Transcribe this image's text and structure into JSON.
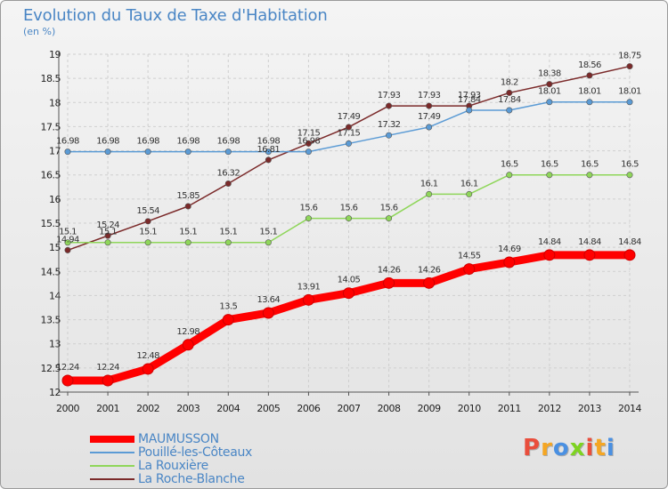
{
  "title": "Evolution du Taux de Taxe d'Habitation",
  "subtitle": "(en %)",
  "logo_text": "Proxiti",
  "chart_data": {
    "type": "line",
    "title": "Evolution du Taux de Taxe d'Habitation",
    "ylabel": "(en %)",
    "xlabel": "",
    "ylim": [
      12,
      19
    ],
    "yticks": [
      "12",
      "12.5",
      "13",
      "13.5",
      "14",
      "14.5",
      "15",
      "15.5",
      "16",
      "16.5",
      "17",
      "17.5",
      "18",
      "18.5",
      "19"
    ],
    "x": [
      "2000",
      "2001",
      "2002",
      "2003",
      "2004",
      "2005",
      "2006",
      "2007",
      "2008",
      "2009",
      "2010",
      "2011",
      "2012",
      "2013",
      "2014"
    ],
    "grid": true,
    "series": [
      {
        "name": "MAUMUSSON",
        "color": "#ff0000",
        "values": [
          12.24,
          12.24,
          12.48,
          12.98,
          13.5,
          13.64,
          13.91,
          14.05,
          14.26,
          14.26,
          14.55,
          14.69,
          14.84,
          14.84,
          14.84
        ],
        "labels": [
          "12.24",
          "12.24",
          "12.48",
          "12.98",
          "13.5",
          "13.64",
          "13.91",
          "14.05",
          "14.26",
          "14.26",
          "14.55",
          "14.69",
          "14.84",
          "14.84",
          "14.84"
        ]
      },
      {
        "name": "Pouillé-les-Côteaux",
        "color": "#5b9bd5",
        "values": [
          16.98,
          16.98,
          16.98,
          16.98,
          16.98,
          16.98,
          16.98,
          17.15,
          17.32,
          17.49,
          17.84,
          17.84,
          18.01,
          18.01,
          18.01
        ],
        "labels": [
          "16.98",
          "16.98",
          "16.98",
          "16.98",
          "16.98",
          "16.98",
          "16.98",
          "17.15",
          "17.32",
          "17.49",
          "17.84",
          "17.84",
          "18.01",
          "18.01",
          "18.01"
        ]
      },
      {
        "name": "La Rouxière",
        "color": "#8fd65a",
        "values": [
          15.1,
          15.1,
          15.1,
          15.1,
          15.1,
          15.1,
          15.6,
          15.6,
          15.6,
          16.1,
          16.1,
          16.5,
          16.5,
          16.5,
          16.5
        ],
        "labels": [
          "15.1",
          "15.1",
          "15.1",
          "15.1",
          "15.1",
          "15.1",
          "15.6",
          "15.6",
          "15.6",
          "16.1",
          "16.1",
          "16.5",
          "16.5",
          "16.5",
          "16.5"
        ]
      },
      {
        "name": "La Roche-Blanche",
        "color": "#7b2a2a",
        "values": [
          14.94,
          15.24,
          15.54,
          15.85,
          16.32,
          16.81,
          17.15,
          17.49,
          17.93,
          17.93,
          17.93,
          18.2,
          18.38,
          18.56,
          18.75
        ],
        "labels": [
          "14.94",
          "15.24",
          "15.54",
          "15.85",
          "16.32",
          "16.81",
          "17.15",
          "17.49",
          "17.93",
          "17.93",
          "17.93",
          "18.2",
          "18.38",
          "18.56",
          "18.75"
        ]
      }
    ]
  },
  "colors": {
    "title": "#4a86c5",
    "logo": [
      "#e94e3c",
      "#f5a623",
      "#4a90e2",
      "#7ed321",
      "#e94e3c",
      "#f5a623",
      "#4a90e2"
    ]
  }
}
